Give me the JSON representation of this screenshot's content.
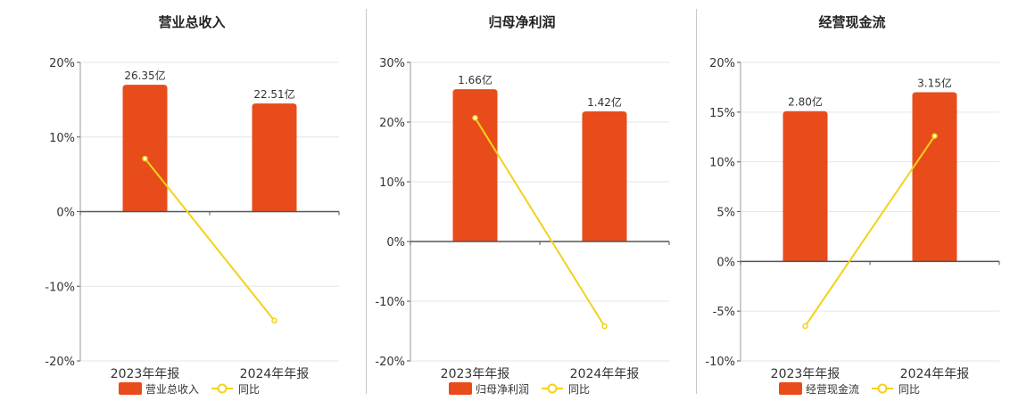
{
  "colors": {
    "bar": "#E84C1A",
    "line": "#F2D21B",
    "axis": "#555555",
    "grid": "#e6e6e6",
    "text": "#333333"
  },
  "legend": {
    "line_label": "同比"
  },
  "chart_data": [
    {
      "type": "bar",
      "title": "营业总收入",
      "categories": [
        "2023年年报",
        "2024年年报"
      ],
      "bar_labels": [
        "26.35亿",
        "22.51亿"
      ],
      "bar_values": [
        26.35,
        22.51
      ],
      "series": [
        {
          "name": "营业总收入",
          "type": "bar",
          "values": [
            17,
            14.5
          ]
        },
        {
          "name": "同比",
          "type": "line",
          "values": [
            7.1,
            -14.6
          ]
        }
      ],
      "ylim": [
        -20,
        20
      ],
      "yticks": [
        20,
        10,
        0,
        -10,
        -20
      ],
      "ytick_labels": [
        "20%",
        "10%",
        "0%",
        "-10%",
        "-20%"
      ],
      "grid": true,
      "legend_position": "bottom"
    },
    {
      "type": "bar",
      "title": "归母净利润",
      "categories": [
        "2023年年报",
        "2024年年报"
      ],
      "bar_labels": [
        "1.66亿",
        "1.42亿"
      ],
      "bar_values": [
        1.66,
        1.42
      ],
      "series": [
        {
          "name": "归母净利润",
          "type": "bar",
          "values": [
            25.5,
            21.8
          ]
        },
        {
          "name": "同比",
          "type": "line",
          "values": [
            20.7,
            -14.2
          ]
        }
      ],
      "ylim": [
        -20,
        30
      ],
      "yticks": [
        30,
        20,
        10,
        0,
        -10,
        -20
      ],
      "ytick_labels": [
        "30%",
        "20%",
        "10%",
        "0%",
        "-10%",
        "-20%"
      ],
      "grid": true,
      "legend_position": "bottom"
    },
    {
      "type": "bar",
      "title": "经营现金流",
      "categories": [
        "2023年年报",
        "2024年年报"
      ],
      "bar_labels": [
        "2.80亿",
        "3.15亿"
      ],
      "bar_values": [
        2.8,
        3.15
      ],
      "series": [
        {
          "name": "经营现金流",
          "type": "bar",
          "values": [
            15.1,
            17
          ]
        },
        {
          "name": "同比",
          "type": "line",
          "values": [
            -6.5,
            12.6
          ]
        }
      ],
      "ylim": [
        -10,
        20
      ],
      "yticks": [
        20,
        15,
        10,
        5,
        0,
        -5,
        -10
      ],
      "ytick_labels": [
        "20%",
        "15%",
        "10%",
        "5%",
        "0%",
        "-5%",
        "-10%"
      ],
      "grid": true,
      "legend_position": "bottom"
    }
  ]
}
